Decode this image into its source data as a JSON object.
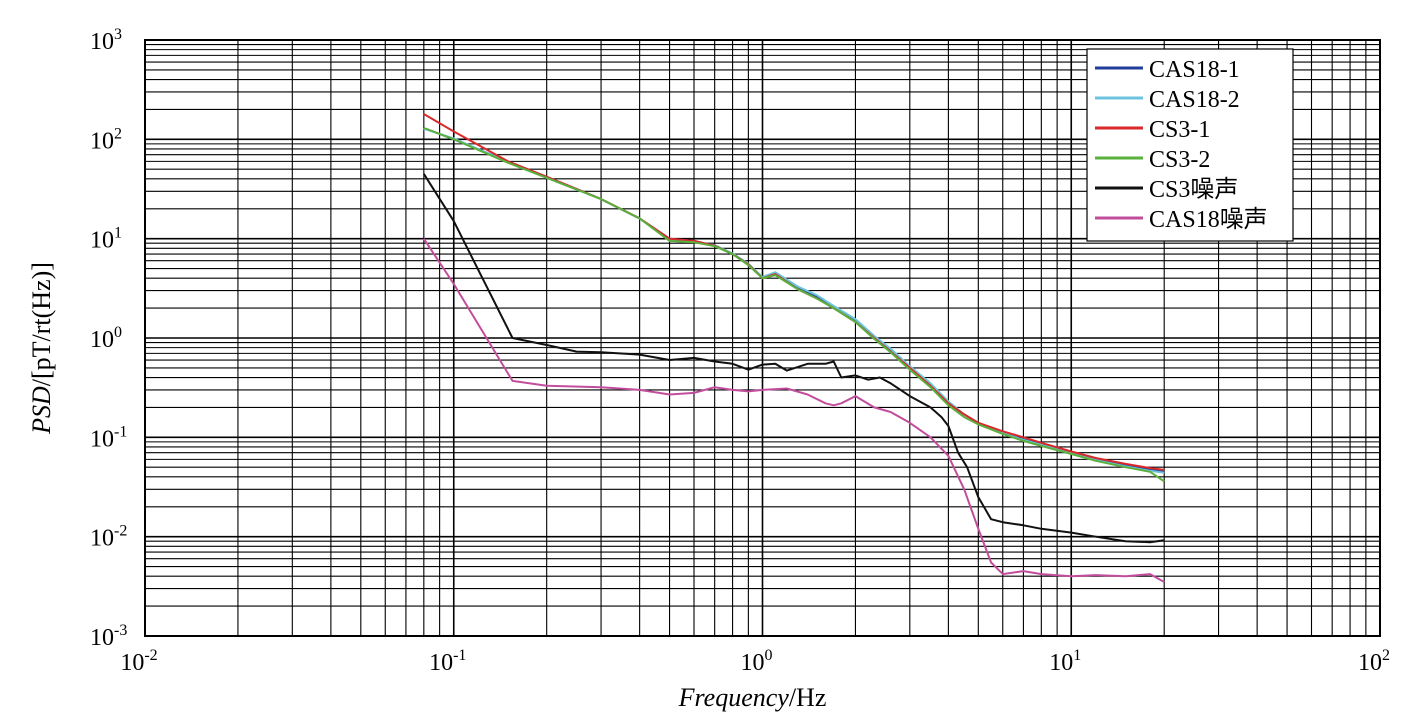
{
  "chart_data": {
    "type": "line",
    "title": "",
    "xlabel": {
      "italic": "Frequency",
      "unit": "/Hz"
    },
    "ylabel": {
      "italic": "PSD",
      "unit": "/[pT/rt(Hz)]"
    },
    "xscale": "log",
    "yscale": "log",
    "xlim": [
      0.01,
      100
    ],
    "ylim": [
      0.001,
      1000
    ],
    "grid": "major+minor",
    "legend_position": "top-right",
    "x_ticks": [
      {
        "value": 0.01,
        "base": "10",
        "exp": "-2"
      },
      {
        "value": 0.1,
        "base": "10",
        "exp": "-1"
      },
      {
        "value": 1,
        "base": "10",
        "exp": "0"
      },
      {
        "value": 10,
        "base": "10",
        "exp": "1"
      },
      {
        "value": 100,
        "base": "10",
        "exp": "2"
      }
    ],
    "y_ticks": [
      {
        "value": 1000,
        "label": "10",
        "exp": "3"
      },
      {
        "value": 100,
        "label": "10",
        "exp": "2"
      },
      {
        "value": 10,
        "label": "10",
        "exp": "1"
      },
      {
        "value": 1,
        "label": "10",
        "exp": "0"
      },
      {
        "value": 0.1,
        "label": "10",
        "exp": "-1"
      },
      {
        "value": 0.01,
        "label": "10",
        "exp": "-2"
      },
      {
        "value": 0.001,
        "label": "10",
        "exp": "-3"
      }
    ],
    "series": [
      {
        "name": "CAS18-1",
        "color": "#1f3d99",
        "x": [
          0.08,
          0.1,
          0.15,
          0.2,
          0.3,
          0.4,
          0.5,
          0.6,
          0.7,
          0.8,
          0.9,
          1.0,
          1.1,
          1.3,
          1.5,
          1.7,
          2.0,
          2.3,
          2.6,
          3.0,
          3.5,
          4.0,
          4.5,
          5.0,
          6.0,
          7.0,
          8.0,
          10.0,
          12.0,
          15.0,
          18.0,
          20.0
        ],
        "y": [
          130,
          100,
          60,
          42,
          25,
          16,
          10,
          9.5,
          8.5,
          7,
          5.5,
          4,
          4.5,
          3.2,
          2.6,
          2.0,
          1.5,
          1.0,
          0.75,
          0.5,
          0.33,
          0.22,
          0.17,
          0.14,
          0.11,
          0.095,
          0.085,
          0.07,
          0.06,
          0.052,
          0.047,
          0.045
        ]
      },
      {
        "name": "CAS18-2",
        "color": "#6ec3dc",
        "x": [
          0.08,
          0.1,
          0.15,
          0.2,
          0.3,
          0.4,
          0.5,
          0.6,
          0.7,
          0.8,
          0.9,
          1.0,
          1.1,
          1.3,
          1.5,
          1.7,
          2.0,
          2.3,
          2.6,
          3.0,
          3.5,
          4.0,
          4.5,
          5.0,
          6.0,
          7.0,
          8.0,
          10.0,
          12.0,
          15.0,
          18.0,
          20.0
        ],
        "y": [
          128,
          102,
          59,
          41,
          25,
          16,
          10,
          9.3,
          8.6,
          7.1,
          5.6,
          4.1,
          4.6,
          3.3,
          2.7,
          2.1,
          1.55,
          1.05,
          0.78,
          0.52,
          0.35,
          0.23,
          0.17,
          0.14,
          0.11,
          0.094,
          0.084,
          0.069,
          0.059,
          0.051,
          0.046,
          0.044
        ]
      },
      {
        "name": "CS3-1",
        "color": "#d82a2a",
        "x": [
          0.08,
          0.1,
          0.15,
          0.2,
          0.3,
          0.4,
          0.5,
          0.6,
          0.7,
          0.8,
          0.9,
          1.0,
          1.1,
          1.3,
          1.5,
          1.7,
          2.0,
          2.3,
          2.6,
          3.0,
          3.5,
          4.0,
          4.5,
          5.0,
          6.0,
          7.0,
          8.0,
          10.0,
          12.0,
          15.0,
          18.0,
          20.0
        ],
        "y": [
          180,
          120,
          60,
          42,
          25,
          16,
          10,
          9.5,
          8.5,
          7,
          5.5,
          4,
          4.4,
          3.1,
          2.5,
          2.0,
          1.45,
          1.0,
          0.73,
          0.5,
          0.33,
          0.22,
          0.17,
          0.14,
          0.115,
          0.1,
          0.088,
          0.072,
          0.062,
          0.054,
          0.049,
          0.047
        ]
      },
      {
        "name": "CS3-2",
        "color": "#5ab03c",
        "x": [
          0.08,
          0.1,
          0.15,
          0.2,
          0.3,
          0.4,
          0.5,
          0.6,
          0.7,
          0.8,
          0.9,
          1.0,
          1.1,
          1.3,
          1.5,
          1.7,
          2.0,
          2.3,
          2.6,
          3.0,
          3.5,
          4.0,
          4.5,
          5.0,
          6.0,
          7.0,
          8.0,
          10.0,
          12.0,
          15.0,
          18.0,
          20.0
        ],
        "y": [
          130,
          100,
          58,
          41,
          25,
          16,
          9.5,
          9.2,
          8.4,
          7,
          5.4,
          4,
          4.3,
          3.1,
          2.5,
          2.0,
          1.45,
          0.98,
          0.72,
          0.48,
          0.32,
          0.21,
          0.16,
          0.135,
          0.108,
          0.092,
          0.082,
          0.068,
          0.058,
          0.05,
          0.045,
          0.036
        ]
      },
      {
        "name": "CS3噪声",
        "color": "#111111",
        "x": [
          0.08,
          0.1,
          0.155,
          0.2,
          0.25,
          0.3,
          0.4,
          0.5,
          0.6,
          0.7,
          0.8,
          0.9,
          1.0,
          1.1,
          1.2,
          1.4,
          1.6,
          1.7,
          1.8,
          2.0,
          2.2,
          2.4,
          2.6,
          3.0,
          3.5,
          3.8,
          4.0,
          4.3,
          4.6,
          5.0,
          5.5,
          6.0,
          7.0,
          8.0,
          10.0,
          12.0,
          15.0,
          18.0,
          20.0
        ],
        "y": [
          45,
          15,
          1.0,
          0.85,
          0.73,
          0.72,
          0.68,
          0.6,
          0.63,
          0.58,
          0.55,
          0.48,
          0.54,
          0.55,
          0.47,
          0.55,
          0.55,
          0.58,
          0.4,
          0.42,
          0.38,
          0.4,
          0.35,
          0.26,
          0.2,
          0.16,
          0.13,
          0.07,
          0.05,
          0.025,
          0.015,
          0.014,
          0.013,
          0.012,
          0.011,
          0.01,
          0.009,
          0.0088,
          0.0092
        ]
      },
      {
        "name": "CAS18噪声",
        "color": "#c24d9c",
        "x": [
          0.08,
          0.1,
          0.155,
          0.2,
          0.3,
          0.4,
          0.5,
          0.6,
          0.7,
          0.8,
          0.9,
          1.0,
          1.2,
          1.4,
          1.6,
          1.7,
          1.8,
          2.0,
          2.3,
          2.6,
          3.0,
          3.5,
          4.0,
          4.5,
          5.0,
          5.5,
          6.0,
          7.0,
          8.0,
          10.0,
          12.0,
          15.0,
          18.0,
          20.0
        ],
        "y": [
          10,
          3.5,
          0.37,
          0.33,
          0.32,
          0.3,
          0.27,
          0.28,
          0.32,
          0.3,
          0.29,
          0.3,
          0.31,
          0.27,
          0.22,
          0.21,
          0.22,
          0.26,
          0.2,
          0.18,
          0.14,
          0.1,
          0.065,
          0.03,
          0.012,
          0.0055,
          0.0042,
          0.0045,
          0.0042,
          0.004,
          0.0041,
          0.004,
          0.0042,
          0.0035
        ]
      }
    ]
  }
}
